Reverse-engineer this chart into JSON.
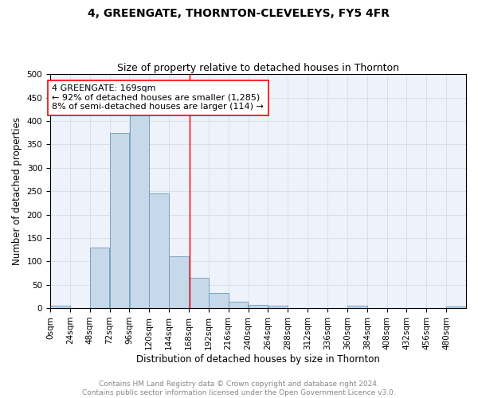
{
  "title": "4, GREENGATE, THORNTON-CLEVELEYS, FY5 4FR",
  "subtitle": "Size of property relative to detached houses in Thornton",
  "xlabel": "Distribution of detached houses by size in Thornton",
  "ylabel": "Number of detached properties",
  "bar_color": "#c8d8eb",
  "bar_edge_color": "#6699bb",
  "grid_color": "#d0d8e8",
  "bg_color": "#eef2fa",
  "vline_x": 169,
  "vline_color": "red",
  "bin_edges": [
    0,
    24,
    48,
    72,
    96,
    120,
    144,
    168,
    192,
    216,
    240,
    264,
    288,
    312,
    336,
    360,
    384,
    408,
    432,
    456,
    480,
    504
  ],
  "bar_heights": [
    5,
    0,
    130,
    375,
    415,
    245,
    110,
    65,
    33,
    14,
    7,
    5,
    0,
    0,
    0,
    5,
    0,
    0,
    0,
    0,
    3
  ],
  "annotation_text": "4 GREENGATE: 169sqm\n← 92% of detached houses are smaller (1,285)\n8% of semi-detached houses are larger (114) →",
  "annotation_box_color": "white",
  "annotation_box_edge": "red",
  "ylim": [
    0,
    500
  ],
  "yticks": [
    0,
    50,
    100,
    150,
    200,
    250,
    300,
    350,
    400,
    450,
    500
  ],
  "xtick_labels": [
    "0sqm",
    "24sqm",
    "48sqm",
    "72sqm",
    "96sqm",
    "120sqm",
    "144sqm",
    "168sqm",
    "192sqm",
    "216sqm",
    "240sqm",
    "264sqm",
    "288sqm",
    "312sqm",
    "336sqm",
    "360sqm",
    "384sqm",
    "408sqm",
    "432sqm",
    "456sqm",
    "480sqm"
  ],
  "footnote1": "Contains HM Land Registry data © Crown copyright and database right 2024.",
  "footnote2": "Contains public sector information licensed under the Open Government Licence v3.0.",
  "title_fontsize": 10,
  "subtitle_fontsize": 9,
  "annotation_fontsize": 8,
  "footnote_fontsize": 6.5,
  "xlabel_fontsize": 8.5,
  "ylabel_fontsize": 8.5,
  "tick_fontsize": 7.5
}
